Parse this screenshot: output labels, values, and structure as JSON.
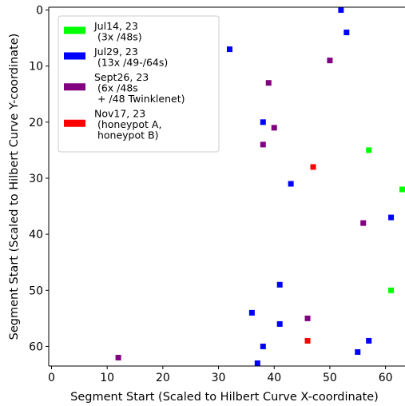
{
  "chart_data": {
    "type": "scatter",
    "xlabel": "Segment Start (Scaled to Hilbert Curve X-coordinate)",
    "ylabel": "Segment Start (Scaled to Hilbert Curve Y-coordinate)",
    "xlim": [
      -0.5,
      63.5
    ],
    "ylim": [
      63.5,
      -0.5
    ],
    "y_inverted": true,
    "grid": false,
    "legend_position": "upper-left",
    "xticks": [
      0,
      10,
      20,
      30,
      40,
      50,
      60
    ],
    "yticks": [
      0,
      10,
      20,
      30,
      40,
      50,
      60
    ],
    "series": [
      {
        "name": "Jul14, 23\n (3x /48s)",
        "color": "#00ff00",
        "points": [
          [
            57,
            25
          ],
          [
            63,
            32
          ],
          [
            61,
            50
          ]
        ]
      },
      {
        "name": "Jul29, 23\n (13x /49-/64s)",
        "color": "#0000ff",
        "points": [
          [
            52,
            0
          ],
          [
            53,
            4
          ],
          [
            32,
            7
          ],
          [
            38,
            20
          ],
          [
            43,
            31
          ],
          [
            61,
            37
          ],
          [
            41,
            49
          ],
          [
            36,
            54
          ],
          [
            41,
            56
          ],
          [
            57,
            59
          ],
          [
            38,
            60
          ],
          [
            55,
            61
          ],
          [
            37,
            63
          ]
        ]
      },
      {
        "name": "Sept26, 23\n (6x /48s\n + /48 Twinklenet)",
        "color": "#800080",
        "points": [
          [
            50,
            9
          ],
          [
            39,
            13
          ],
          [
            40,
            21
          ],
          [
            38,
            24
          ],
          [
            56,
            38
          ],
          [
            46,
            55
          ],
          [
            12,
            62
          ]
        ]
      },
      {
        "name": "Nov17, 23\n (honeypot A,\n honeypot B)",
        "color": "#ff0000",
        "points": [
          [
            47,
            28
          ],
          [
            46,
            59
          ]
        ]
      }
    ]
  }
}
